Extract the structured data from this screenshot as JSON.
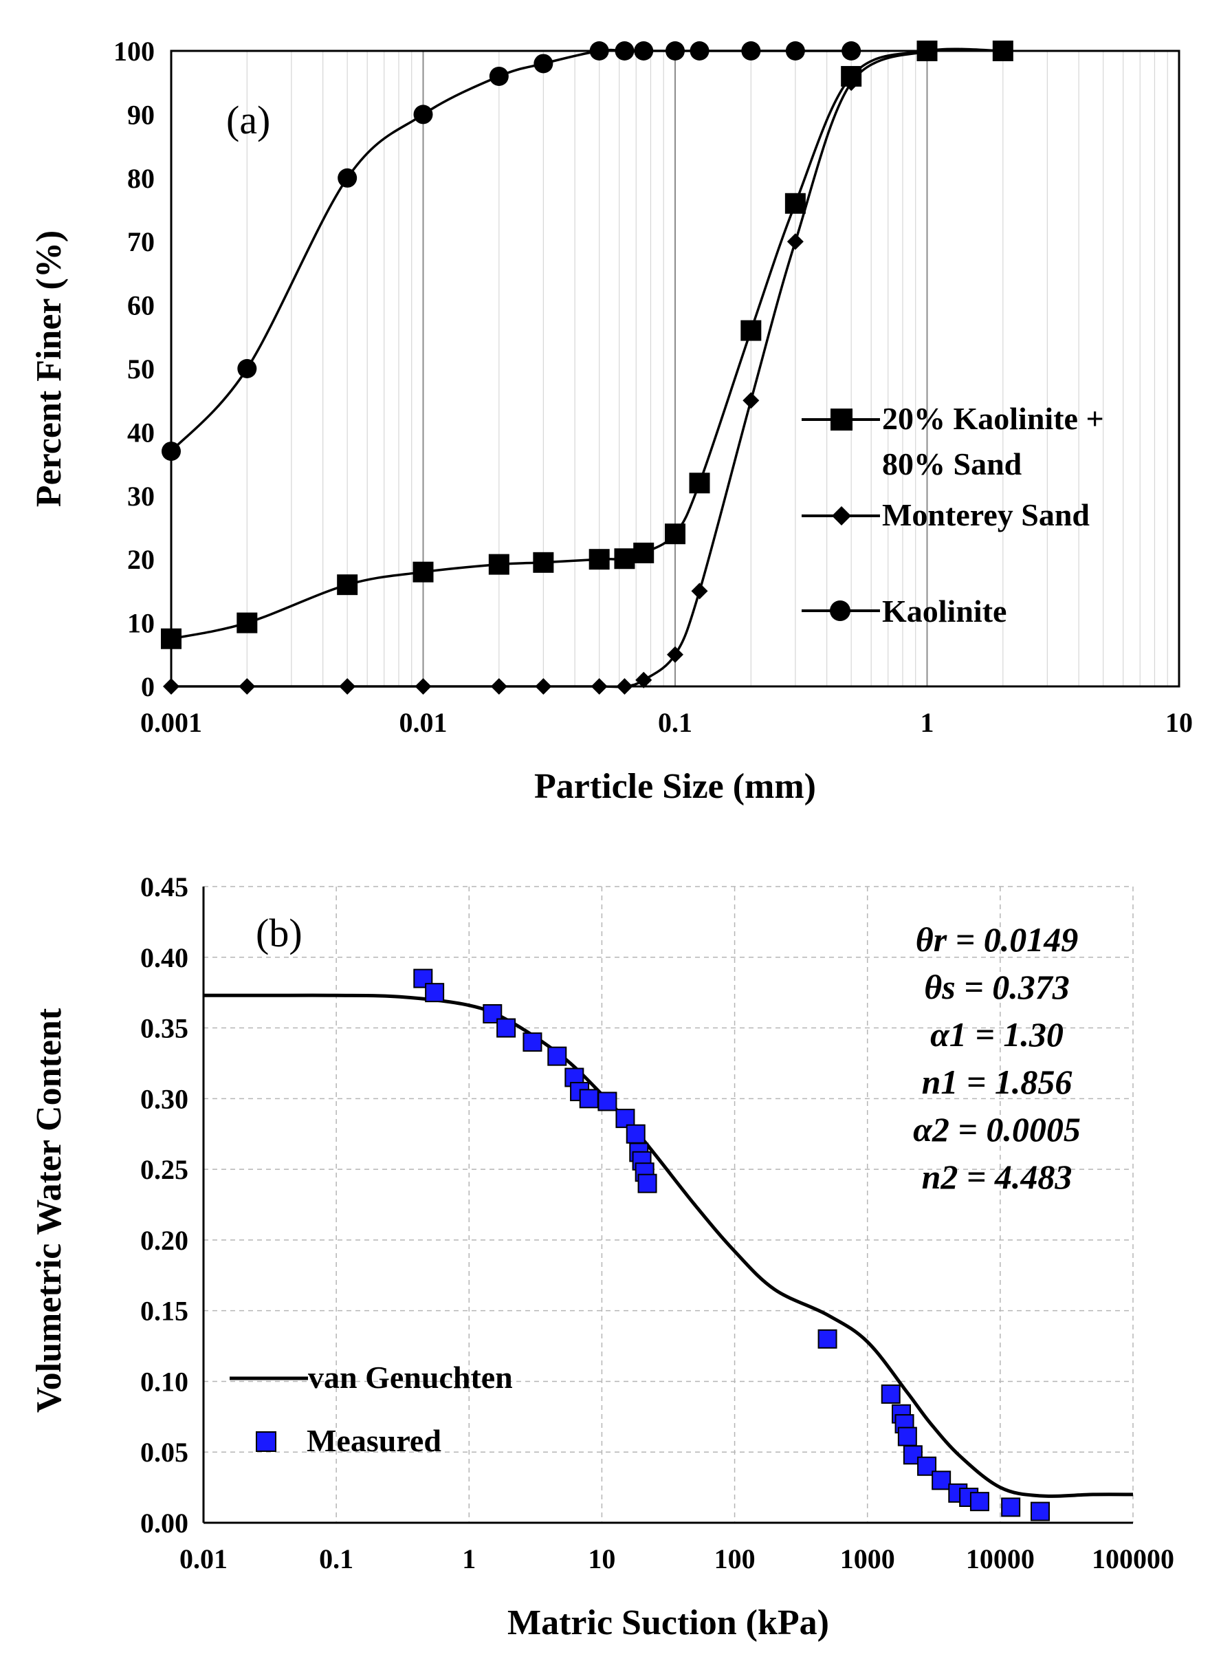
{
  "chart_data": [
    {
      "type": "line",
      "panel_label": "(a)",
      "xlabel": "Particle Size (mm)",
      "ylabel": "Percent Finer (%)",
      "xscale": "log",
      "xlim": [
        0.001,
        10
      ],
      "ylim": [
        0,
        100
      ],
      "x_ticks": [
        "0.001",
        "0.01",
        "0.1",
        "1",
        "10"
      ],
      "y_ticks": [
        "0",
        "10",
        "20",
        "30",
        "40",
        "50",
        "60",
        "70",
        "80",
        "90",
        "100"
      ],
      "grid": "vertical log gridlines",
      "legend_position": "right-middle",
      "series": [
        {
          "name": "20% Kaolinite + 80% Sand",
          "legend_lines": [
            "20% Kaolinite +",
            "80% Sand"
          ],
          "marker": "square",
          "x": [
            0.001,
            0.002,
            0.005,
            0.01,
            0.02,
            0.03,
            0.05,
            0.063,
            0.075,
            0.1,
            0.125,
            0.2,
            0.3,
            0.5,
            1,
            2
          ],
          "y": [
            7.5,
            10,
            16,
            18,
            19.2,
            19.5,
            20,
            20.1,
            21,
            24,
            32,
            56,
            76,
            96,
            100,
            100
          ]
        },
        {
          "name": "Monterey Sand",
          "legend_lines": [
            "Monterey Sand"
          ],
          "marker": "diamond",
          "x": [
            0.001,
            0.002,
            0.005,
            0.01,
            0.02,
            0.03,
            0.05,
            0.063,
            0.075,
            0.1,
            0.125,
            0.2,
            0.3,
            0.5,
            1
          ],
          "y": [
            0,
            0,
            0,
            0,
            0,
            0,
            0,
            0,
            1,
            5,
            15,
            45,
            70,
            95,
            100
          ]
        },
        {
          "name": "Kaolinite",
          "legend_lines": [
            "Kaolinite"
          ],
          "marker": "circle",
          "x": [
            0.001,
            0.002,
            0.005,
            0.01,
            0.02,
            0.03,
            0.05,
            0.063,
            0.075,
            0.1,
            0.125,
            0.2,
            0.3,
            0.5
          ],
          "y": [
            37,
            50,
            80,
            90,
            96,
            98,
            100,
            100,
            100,
            100,
            100,
            100,
            100,
            100
          ]
        }
      ]
    },
    {
      "type": "scatter",
      "panel_label": "(b)",
      "xlabel": "Matric Suction (kPa)",
      "ylabel": "Volumetric Water Content",
      "xscale": "log",
      "xlim": [
        0.01,
        100000
      ],
      "ylim": [
        0,
        0.45
      ],
      "x_ticks": [
        "0.01",
        "0.1",
        "1",
        "10",
        "100",
        "1000",
        "10000",
        "100000"
      ],
      "y_ticks": [
        "0.00",
        "0.05",
        "0.10",
        "0.15",
        "0.20",
        "0.25",
        "0.30",
        "0.35",
        "0.40",
        "0.45"
      ],
      "grid": "dashed horizontal and vertical",
      "legend_position": "bottom-left",
      "parameters": [
        "θr = 0.0149",
        "θs = 0.373",
        "α1 = 1.30",
        "n1 = 1.856",
        "α2 = 0.0005",
        "n2 = 4.483"
      ],
      "series": [
        {
          "name": "van Genuchten",
          "style": "line",
          "x": [
            0.01,
            0.03,
            0.1,
            0.3,
            1,
            2,
            5,
            10,
            20,
            50,
            100,
            200,
            500,
            1000,
            2000,
            3000,
            5000,
            10000,
            20000,
            50000,
            100000
          ],
          "y": [
            0.373,
            0.373,
            0.373,
            0.372,
            0.366,
            0.355,
            0.33,
            0.303,
            0.272,
            0.225,
            0.192,
            0.165,
            0.147,
            0.128,
            0.092,
            0.07,
            0.047,
            0.025,
            0.019,
            0.02,
            0.02
          ]
        },
        {
          "name": "Measured",
          "style": "marker",
          "marker": "square",
          "color": "#1a1aff",
          "x": [
            0.45,
            0.55,
            1.5,
            1.9,
            3,
            4.6,
            6.2,
            6.8,
            8,
            11,
            15,
            18,
            19,
            20,
            21,
            22,
            500,
            1500,
            1800,
            1900,
            2000,
            2200,
            2800,
            3600,
            4800,
            5800,
            7000,
            12000,
            20000
          ],
          "y": [
            0.385,
            0.375,
            0.36,
            0.35,
            0.34,
            0.33,
            0.315,
            0.305,
            0.3,
            0.298,
            0.286,
            0.275,
            0.262,
            0.256,
            0.248,
            0.24,
            0.13,
            0.091,
            0.077,
            0.07,
            0.061,
            0.048,
            0.04,
            0.03,
            0.021,
            0.018,
            0.015,
            0.011,
            0.008
          ]
        }
      ]
    }
  ]
}
